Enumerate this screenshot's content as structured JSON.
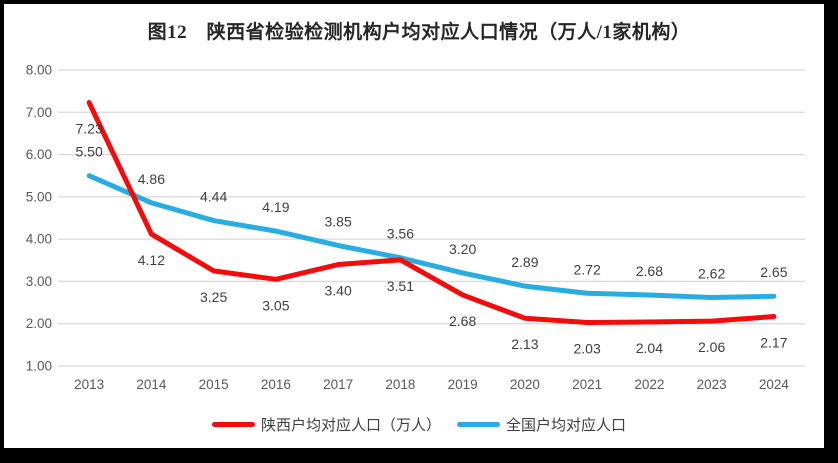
{
  "title": "图12　陕西省检验检测机构户均对应人口情况（万人/1家机构）",
  "colors": {
    "shaanxi": "#f40b0b",
    "national": "#29ace2",
    "grid": "#d9d9d9",
    "axis_text": "#595959",
    "label_text": "#3f3f3f",
    "border": "#000000",
    "background": "#ffffff"
  },
  "chart_data": {
    "type": "line",
    "title": "图12　陕西省检验检测机构户均对应人口情况（万人/1家机构）",
    "categories": [
      "2013",
      "2014",
      "2015",
      "2016",
      "2017",
      "2018",
      "2019",
      "2020",
      "2021",
      "2022",
      "2023",
      "2024"
    ],
    "series": [
      {
        "name": "陕西户均对应人口（万人）",
        "color_key": "shaanxi",
        "label_position": "below",
        "values": [
          7.23,
          4.12,
          3.25,
          3.05,
          3.4,
          3.51,
          2.68,
          2.13,
          2.03,
          2.04,
          2.06,
          2.17
        ]
      },
      {
        "name": "全国户均对应人口",
        "color_key": "national",
        "label_position": "above",
        "values": [
          5.5,
          4.86,
          4.44,
          4.19,
          3.85,
          3.56,
          3.2,
          2.89,
          2.72,
          2.68,
          2.62,
          2.65
        ]
      }
    ],
    "xlabel": "",
    "ylabel": "",
    "ylim": [
      1,
      8
    ],
    "y_ticks": [
      "1.00",
      "2.00",
      "3.00",
      "4.00",
      "5.00",
      "6.00",
      "7.00",
      "8.00"
    ],
    "grid": true,
    "legend_position": "bottom",
    "data_labels": true
  }
}
